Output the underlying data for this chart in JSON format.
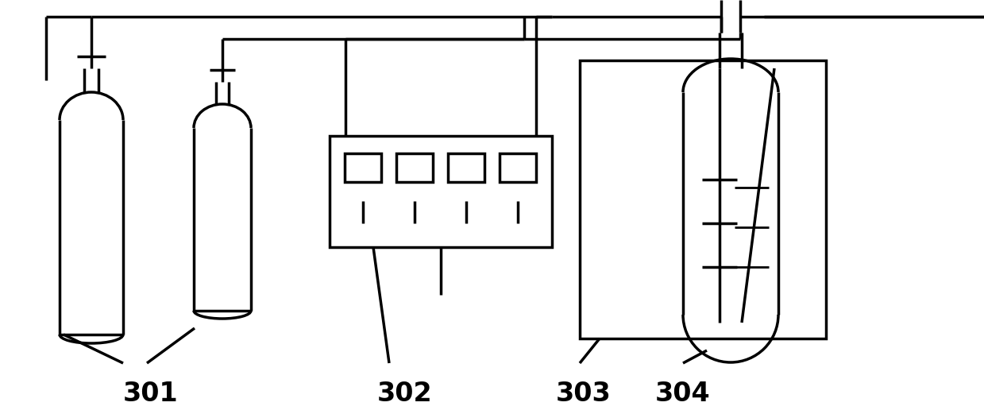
{
  "background_color": "#ffffff",
  "line_color": "#000000",
  "line_width": 2.5,
  "label_301": "301",
  "label_302": "302",
  "label_303": "303",
  "label_304": "304",
  "label_fontsize": 24,
  "label_fontweight": "bold",
  "fig_width": 12.39,
  "fig_height": 5.21
}
